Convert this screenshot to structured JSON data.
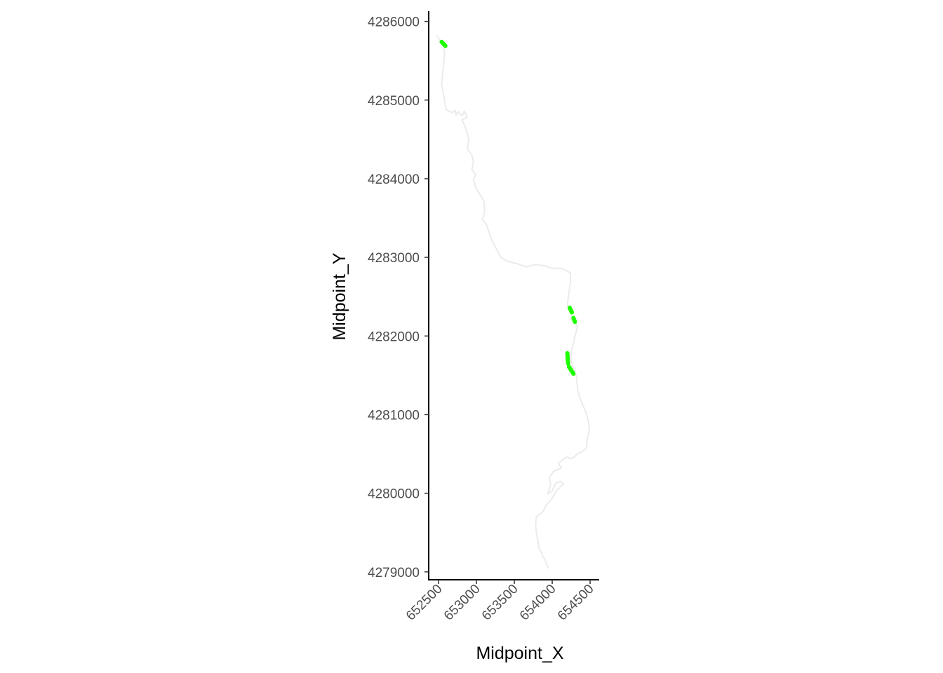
{
  "chart_data": {
    "type": "line",
    "title": "",
    "xlabel": "Midpoint_X",
    "ylabel": "Midpoint_Y",
    "xlim": [
      652370,
      654620
    ],
    "ylim": [
      4278900,
      4286130
    ],
    "x_ticks": [
      652500,
      653000,
      653500,
      654000,
      654500
    ],
    "x_tick_labels": [
      "652500",
      "653000",
      "653500",
      "654000",
      "654500"
    ],
    "y_ticks": [
      4279000,
      4280000,
      4281000,
      4282000,
      4283000,
      4284000,
      4285000,
      4286000
    ],
    "y_tick_labels": [
      "4279000",
      "4280000",
      "4281000",
      "4282000",
      "4283000",
      "4284000",
      "4285000",
      "4286000"
    ],
    "grid": false,
    "legend": "none",
    "series": [
      {
        "color": "#ebebeb",
        "x": [
          652480,
          652520,
          652560,
          652580,
          652560,
          652540,
          652570,
          652600,
          652680,
          652720,
          652730,
          652760,
          652810,
          652840,
          652880,
          652810,
          652860,
          652900,
          652880,
          652940,
          652960,
          652940,
          652990,
          652960,
          652990,
          653050,
          653100,
          653110,
          653080,
          653130,
          653160,
          653200,
          653250,
          653280,
          653320,
          653410,
          653530,
          653660,
          653780,
          653910,
          654000,
          654120,
          654190,
          654240,
          654240,
          654220,
          654200,
          654220,
          654250,
          654270,
          654290,
          654320,
          654330,
          654300,
          654280,
          654250,
          654250,
          654270,
          654300,
          654320,
          654330,
          654340,
          654370,
          654400,
          654450,
          654480,
          654490,
          654470,
          654450,
          654380,
          654330,
          654290,
          654250,
          654190,
          654120,
          654080,
          654120,
          654020,
          653960,
          653980,
          653940,
          654000,
          654050,
          654110,
          654150,
          654060,
          653990,
          653920,
          653900,
          653860,
          653790,
          653780,
          653800,
          653820,
          653830,
          653850,
          653870,
          653900,
          653950
        ],
        "y": [
          4285820,
          4285760,
          4285700,
          4285600,
          4285400,
          4285200,
          4285040,
          4284880,
          4284840,
          4284870,
          4284810,
          4284850,
          4284800,
          4284860,
          4284780,
          4284750,
          4284640,
          4284500,
          4284380,
          4284300,
          4284210,
          4284120,
          4284050,
          4283990,
          4283890,
          4283790,
          4283720,
          4283590,
          4283480,
          4283420,
          4283340,
          4283230,
          4283130,
          4283080,
          4283000,
          4282950,
          4282920,
          4282880,
          4282910,
          4282890,
          4282860,
          4282860,
          4282830,
          4282800,
          4282680,
          4282550,
          4282400,
          4282330,
          4282270,
          4282230,
          4282200,
          4282150,
          4282100,
          4282000,
          4281900,
          4281800,
          4281700,
          4281620,
          4281560,
          4281480,
          4281380,
          4281290,
          4281200,
          4281130,
          4281020,
          4280900,
          4280800,
          4280730,
          4280570,
          4280520,
          4280500,
          4280460,
          4280440,
          4280460,
          4280410,
          4280380,
          4280320,
          4280280,
          4280200,
          4280110,
          4279990,
          4280030,
          4280130,
          4280150,
          4280120,
          4280040,
          4279920,
          4279850,
          4279800,
          4279750,
          4279700,
          4279590,
          4279450,
          4279350,
          4279280,
          4279270,
          4279210,
          4279160,
          4279050
        ]
      },
      {
        "color": "#1ffe00",
        "x": [
          652540,
          652590
        ],
        "y": [
          4285740,
          4285690
        ]
      },
      {
        "color": "#1ffe00",
        "x": [
          654230,
          654260
        ],
        "y": [
          4282360,
          4282300
        ]
      },
      {
        "color": "#1ffe00",
        "x": [
          654280,
          654300
        ],
        "y": [
          4282230,
          4282180
        ]
      },
      {
        "color": "#1ffe00",
        "x": [
          654200,
          654210
        ],
        "y": [
          4281780,
          4281650
        ]
      },
      {
        "color": "#1ffe00",
        "x": [
          654220,
          654280
        ],
        "y": [
          4281610,
          4281520
        ]
      }
    ]
  }
}
